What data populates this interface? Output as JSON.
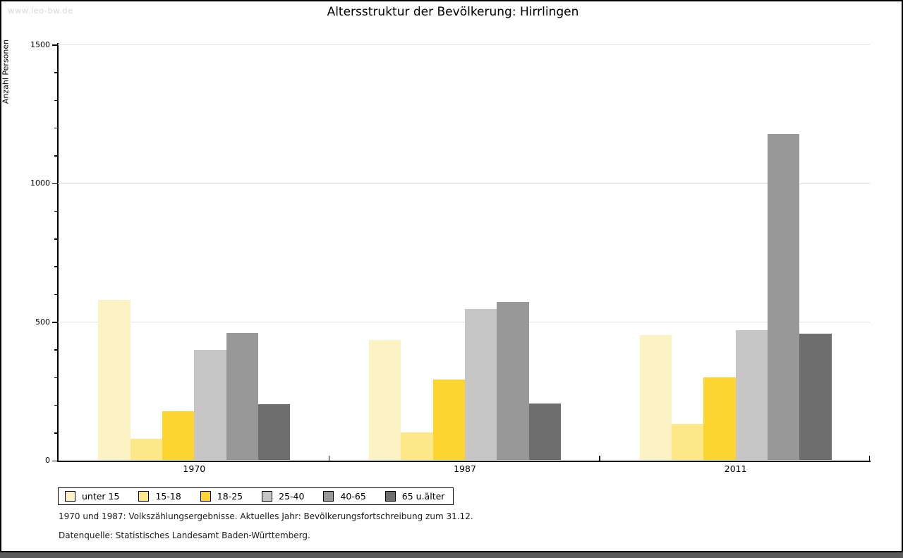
{
  "page": {
    "watermark": "www.leo-bw.de",
    "footer_line1": "1970 und 1987: Volkszählungsergebnisse. Aktuelles Jahr: Bevölkerungsfortschreibung zum 31.12.",
    "footer_line2": "Datenquelle: Statistisches Landesamt Baden-Württemberg."
  },
  "chart_data": {
    "type": "bar",
    "title": "Altersstruktur der Bevölkerung: Hirrlingen",
    "xlabel": "",
    "ylabel": "Anzahl Personen",
    "categories": [
      "1970",
      "1987",
      "2011"
    ],
    "series": [
      {
        "name": "unter 15",
        "color": "#FBF3C4",
        "values": [
          578,
          435,
          452
        ]
      },
      {
        "name": "15-18",
        "color": "#FCE889",
        "values": [
          78,
          100,
          131
        ]
      },
      {
        "name": "18-25",
        "color": "#FCD530",
        "values": [
          177,
          292,
          299
        ]
      },
      {
        "name": "25-40",
        "color": "#C6C6C6",
        "values": [
          397,
          547,
          470
        ]
      },
      {
        "name": "40-65",
        "color": "#989898",
        "values": [
          460,
          570,
          1176
        ]
      },
      {
        "name": "65 u.älter",
        "color": "#6E6E6E",
        "values": [
          202,
          205,
          458
        ]
      }
    ],
    "ylim": [
      0,
      1500
    ],
    "yticks": [
      0,
      500,
      1000,
      1500
    ],
    "y_minor_step": 100,
    "grid": true,
    "legend_position": "bottom-left"
  }
}
